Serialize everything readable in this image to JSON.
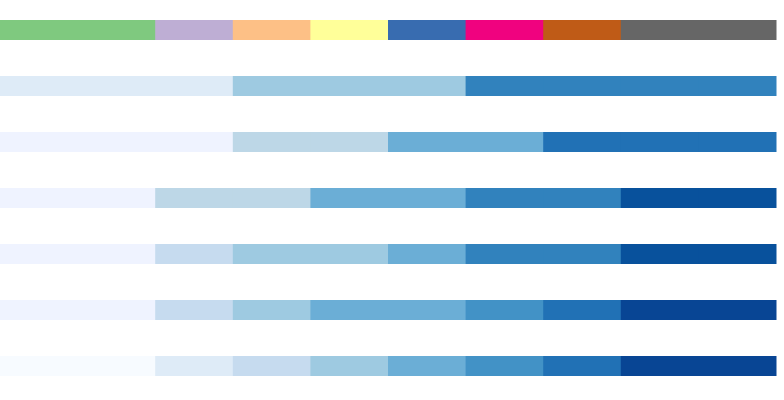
{
  "palettes": [
    {
      "colors": [
        "#7fc97f",
        "#7fc97f",
        "#beaed4",
        "#fdc086",
        "#ffff99",
        "#386cb0",
        "#f0027f",
        "#bf5b17",
        "#666666",
        "#666666"
      ]
    },
    {
      "colors": [
        "#deebf7",
        "#deebf7",
        "#deebf7",
        "#9ecae1",
        "#9ecae1",
        "#9ecae1",
        "#3182bd",
        "#3182bd",
        "#3182bd",
        "#3182bd"
      ]
    },
    {
      "colors": [
        "#eff3ff",
        "#eff3ff",
        "#eff3ff",
        "#bdd7e7",
        "#bdd7e7",
        "#6baed6",
        "#6baed6",
        "#2171b5",
        "#2171b5",
        "#2171b5"
      ]
    },
    {
      "colors": [
        "#eff3ff",
        "#eff3ff",
        "#bdd7e7",
        "#bdd7e7",
        "#6baed6",
        "#6baed6",
        "#3182bd",
        "#3182bd",
        "#08519c",
        "#08519c"
      ]
    },
    {
      "colors": [
        "#eff3ff",
        "#eff3ff",
        "#c6dbef",
        "#9ecae1",
        "#9ecae1",
        "#6baed6",
        "#3182bd",
        "#3182bd",
        "#08519c",
        "#08519c"
      ]
    },
    {
      "colors": [
        "#eff3ff",
        "#eff3ff",
        "#c6dbef",
        "#9ecae1",
        "#6baed6",
        "#6baed6",
        "#4292c6",
        "#2171b5",
        "#084594",
        "#084594"
      ]
    },
    {
      "colors": [
        "#f7fbff",
        "#f7fbff",
        "#deebf7",
        "#c6dbef",
        "#9ecae1",
        "#6baed6",
        "#4292c6",
        "#2171b5",
        "#084594",
        "#084594"
      ]
    }
  ]
}
